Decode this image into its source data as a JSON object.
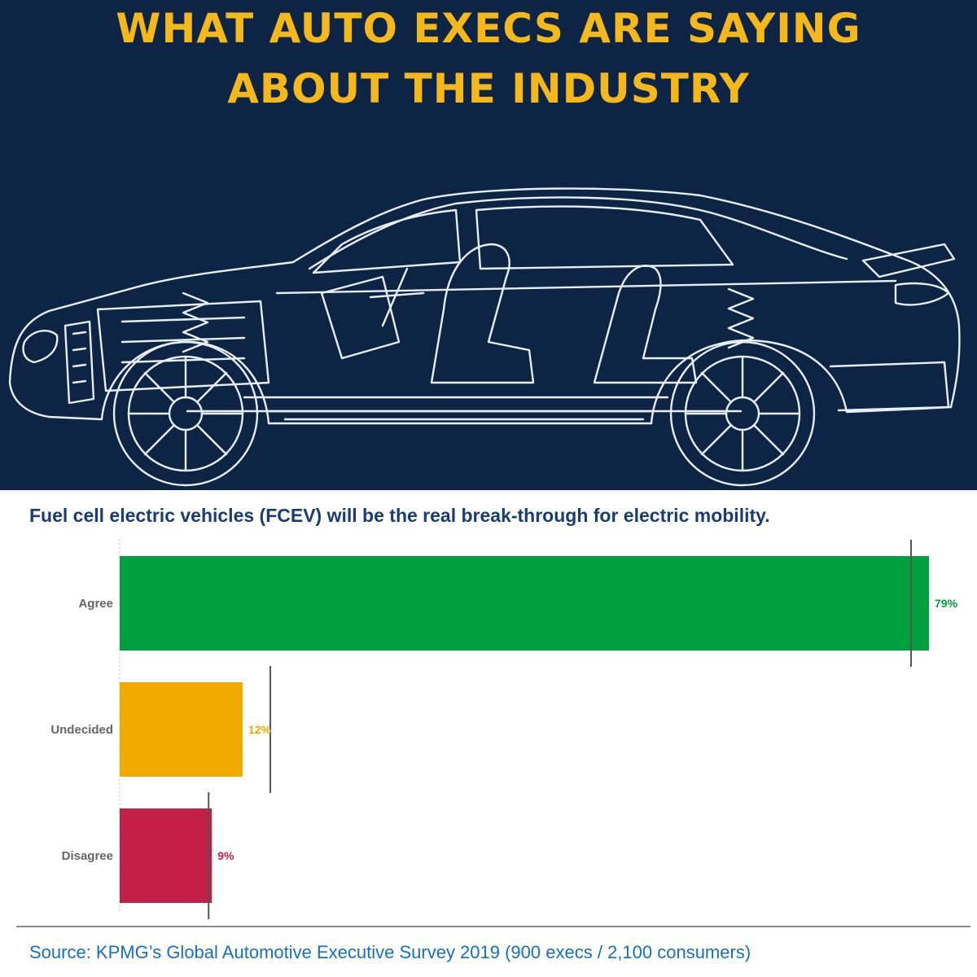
{
  "header": {
    "title_line_1": "WHAT AUTO EXECS ARE SAYING",
    "title_line_2": "ABOUT THE INDUSTRY",
    "background_color": "#0e2444",
    "title_color": "#f5b81c",
    "illustration": "car-blueprint-wireframe"
  },
  "chart_data": {
    "type": "bar",
    "orientation": "horizontal",
    "title": "Fuel cell electric vehicles (FCEV) will be the real break-through for electric mobility.",
    "categories": [
      "Agree",
      "Undecided",
      "Disagree"
    ],
    "values": [
      79,
      12,
      9
    ],
    "value_labels": [
      "79%",
      "12%",
      "9%"
    ],
    "unit": "%",
    "colors": [
      "#00a03e",
      "#f0aa00",
      "#c41f47"
    ],
    "xlim": [
      0,
      79
    ],
    "grid": false,
    "legend": "none"
  },
  "footer": {
    "source": "Source: KPMG’s Global Automotive Executive Survey 2019 (900 execs / 2,100 consumers)"
  }
}
